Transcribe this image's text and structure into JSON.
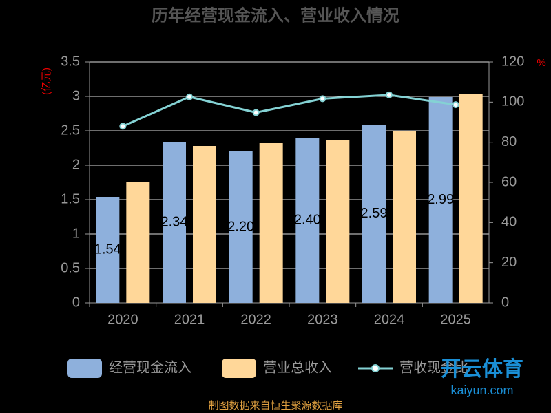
{
  "chart_data": {
    "type": "bar-line",
    "title": "历年经营现金流入、营业收入情况",
    "y_label": "(亿元)",
    "y2_label": "%",
    "categories": [
      "2020",
      "2021",
      "2022",
      "2023",
      "2024",
      "2025"
    ],
    "series": [
      {
        "name": "经营现金流入",
        "color": "#8eb0dc",
        "type": "bar",
        "values": [
          1.54,
          2.34,
          2.2,
          2.4,
          2.59,
          2.99
        ],
        "value_labels": [
          "1.54",
          "2.34",
          "2.20",
          "2.40",
          "2.59",
          "2.99"
        ]
      },
      {
        "name": "营业总收入",
        "color": "#ffd799",
        "type": "bar",
        "values": [
          1.75,
          2.28,
          2.32,
          2.36,
          2.5,
          3.03
        ]
      },
      {
        "name": "营收现金比",
        "color": "#84d2d4",
        "type": "line",
        "axis": "y2",
        "values": [
          88,
          102.6,
          94.8,
          101.7,
          103.6,
          98.7
        ]
      }
    ],
    "ylim": [
      0,
      3.5
    ],
    "yticks": [
      0,
      0.5,
      1,
      1.5,
      2,
      2.5,
      3,
      3.5
    ],
    "y2lim": [
      0,
      120
    ],
    "y2ticks": [
      0,
      20,
      40,
      60,
      80,
      100,
      120
    ],
    "grid": true,
    "source": "制图数据来自恒生聚源数据库",
    "watermark": [
      "开云体育",
      "kaiyun.com"
    ]
  }
}
